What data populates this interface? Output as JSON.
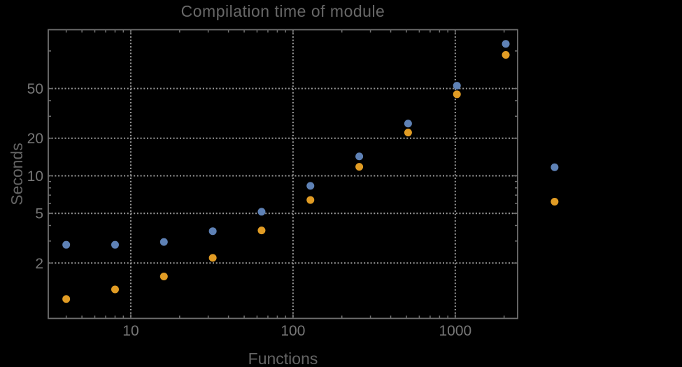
{
  "background": "#000000",
  "chart_data": {
    "type": "scatter",
    "title": "Compilation time of module",
    "xlabel": "Functions",
    "ylabel": "Seconds",
    "x_scale": "log",
    "y_scale": "log",
    "grid": "dotted",
    "x": [
      4,
      8,
      16,
      32,
      64,
      128,
      256,
      512,
      1024,
      2048,
      4096
    ],
    "series": [
      {
        "name": "blue",
        "color": "#5e81b5",
        "values": [
          2.8,
          2.8,
          2.95,
          3.6,
          5.15,
          8.3,
          14.3,
          26.2,
          52.7,
          114,
          11.7
        ]
      },
      {
        "name": "orange",
        "color": "#e19c24",
        "values": [
          1.03,
          1.23,
          1.56,
          2.2,
          3.65,
          6.4,
          11.8,
          22.2,
          45,
          93,
          6.2
        ]
      }
    ],
    "x_range": [
      3.1,
      2423
    ],
    "y_range": [
      0.72,
      148
    ],
    "x_ticks_labeled": [
      10,
      100,
      1000
    ],
    "x_ticks_minor": [
      4,
      5,
      6,
      7,
      8,
      9,
      20,
      30,
      40,
      50,
      60,
      70,
      80,
      90,
      200,
      300,
      400,
      500,
      600,
      700,
      800,
      900,
      2000
    ],
    "y_ticks_labeled": [
      2,
      5,
      10,
      20,
      50
    ],
    "y_ticks_minor": [
      3,
      4,
      6,
      7,
      8,
      9,
      30,
      40,
      100
    ],
    "colors": {
      "frame": "#707070",
      "grid": "#989898",
      "tick_label": "#767676",
      "axis_label": "#646464",
      "title": "#686868"
    }
  }
}
